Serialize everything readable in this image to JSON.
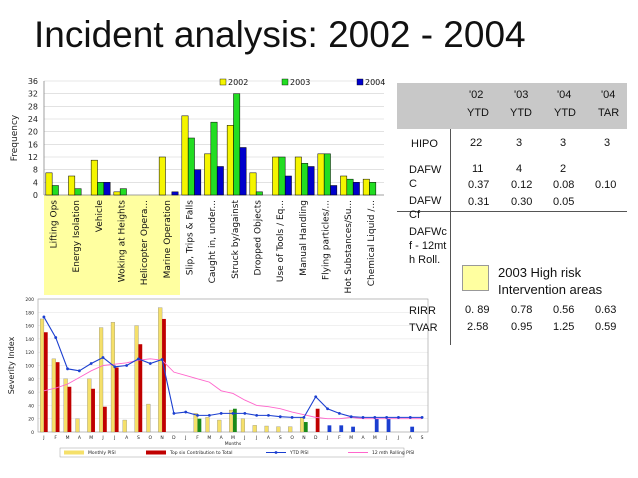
{
  "page": {
    "title": "Incident analysis: 2002 - 2004"
  },
  "colors": {
    "y2002": "#f5f500",
    "y2003": "#22dd22",
    "y2004": "#0000cc",
    "highlight": "#ffffa0",
    "monthly": "#f5e06a",
    "top6": "#c00000",
    "ytd": "#1b3fd0",
    "rolling": "#ff66cc",
    "green_bar": "#1a8a1a"
  },
  "chart_data": [
    {
      "type": "bar",
      "ylabel": "Frequency",
      "ylim": [
        0,
        36
      ],
      "yticks": [
        0,
        4,
        8,
        12,
        16,
        20,
        24,
        28,
        32,
        36
      ],
      "legend": [
        "2002",
        "2003",
        "2004"
      ],
      "highlighted_categories": [
        0,
        1,
        2,
        3,
        4,
        5
      ],
      "categories": [
        "Lifting Ops",
        "Energy Isolation",
        "Vehicle",
        "Woking at Heights",
        "Helicopter Opera...",
        "Marine Operation",
        "Slip, Trips & Falls",
        "Caught in, under...",
        "Struck by/against",
        "Dropped Objects",
        "Use of Tools / Eq...",
        "Manual Handling",
        "Flying particles/...",
        "Hot Substances/Su...",
        "Chemical Liquid /..."
      ],
      "series": [
        {
          "name": "2002",
          "values": [
            7,
            6,
            11,
            1,
            0,
            12,
            25,
            13,
            22,
            7,
            12,
            12,
            13,
            6,
            5
          ]
        },
        {
          "name": "2003",
          "values": [
            3,
            2,
            4,
            2,
            0,
            0,
            18,
            23,
            32,
            1,
            12,
            10,
            13,
            5,
            4
          ]
        },
        {
          "name": "2004",
          "values": [
            0,
            0,
            4,
            0,
            0,
            1,
            8,
            9,
            15,
            0,
            6,
            9,
            3,
            4,
            0
          ]
        }
      ]
    },
    {
      "type": "bar",
      "ylabel": "Severity Index",
      "xlabel": "Months",
      "ylim": [
        0,
        200
      ],
      "yticks": [
        0,
        20,
        40,
        60,
        80,
        100,
        120,
        140,
        160,
        180,
        200
      ],
      "months": [
        "J",
        "F",
        "M",
        "A",
        "M",
        "J",
        "J",
        "A",
        "S",
        "O",
        "N",
        "D",
        "J",
        "F",
        "M",
        "A",
        "M",
        "J",
        "J",
        "A",
        "S",
        "O",
        "N",
        "D",
        "J",
        "F",
        "M",
        "A",
        "M",
        "J",
        "J",
        "A",
        "S"
      ],
      "legend": [
        "Monthly PISI",
        "Top six Contribution to Total",
        "YTD PISI",
        "12 mth Rolling PISI"
      ],
      "series": [
        {
          "name": "Monthly PISI",
          "values": [
            170,
            110,
            80,
            20,
            80,
            157,
            165,
            18,
            160,
            42,
            187,
            0,
            0,
            28,
            22,
            18,
            33,
            20,
            10,
            9,
            8,
            8,
            22,
            0,
            0,
            0,
            0,
            0,
            0,
            0,
            0,
            0,
            0
          ]
        },
        {
          "name": "Top six Contribution to Total",
          "values": [
            150,
            105,
            68,
            0,
            65,
            38,
            97,
            0,
            132,
            0,
            170,
            0,
            0,
            20,
            0,
            0,
            35,
            0,
            0,
            0,
            0,
            0,
            15,
            35,
            10,
            10,
            8,
            0,
            20,
            20,
            0,
            8,
            0
          ]
        },
        {
          "name": "YTD PISI",
          "values": [
            173,
            142,
            95,
            92,
            103,
            112,
            98,
            100,
            110,
            103,
            109,
            28,
            30,
            25,
            25,
            28,
            28,
            28,
            25,
            25,
            23,
            22,
            22,
            53,
            35,
            28,
            23,
            22,
            22,
            22,
            22,
            22,
            22
          ]
        },
        {
          "name": "12 mth Rolling PISI",
          "values": [
            62,
            66,
            72,
            82,
            92,
            100,
            102,
            104,
            108,
            110,
            108,
            90,
            85,
            80,
            75,
            62,
            58,
            48,
            40,
            38,
            35,
            30,
            26,
            22,
            20,
            20,
            22,
            20,
            20,
            20,
            20,
            20,
            20
          ]
        }
      ]
    }
  ],
  "table": {
    "headers": [
      [
        "'02",
        "YTD"
      ],
      [
        "'03",
        "YTD"
      ],
      [
        "'04",
        "YTD"
      ],
      [
        "'04",
        "TAR"
      ]
    ],
    "rows": [
      {
        "label": "HIPO",
        "values": [
          "22",
          "3",
          "3",
          "3"
        ]
      },
      {
        "label": "DAFWC",
        "values": [
          "11",
          "4",
          "2",
          ""
        ]
      },
      {
        "label": "",
        "values": [
          "0.37",
          "0.12",
          "0.08",
          "0.10"
        ]
      },
      {
        "label": "DAFWCf",
        "values": [
          "0.31",
          "0.30",
          "0.05",
          ""
        ]
      },
      {
        "label": "DAFWcf - 12mth Roll.",
        "values": [
          "",
          "",
          "",
          ""
        ]
      },
      {
        "label": "RIRR",
        "values": [
          "0. 89",
          "0.78",
          "0.56",
          "0.63"
        ]
      },
      {
        "label": "TVAR",
        "values": [
          "2.58",
          "0.95",
          "1.25",
          "0.59"
        ]
      }
    ]
  },
  "note": "2003 High risk Intervention areas"
}
